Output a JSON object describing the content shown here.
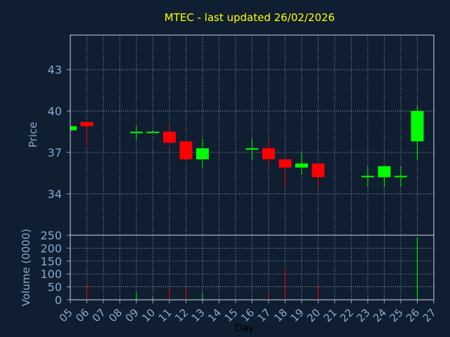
{
  "chart_data": [
    {
      "type": "candlestick",
      "title": "MTEC - last updated 26/02/2026",
      "ylabel": "Price",
      "ylim": [
        31,
        45.5
      ],
      "yticks": [
        34,
        37,
        40,
        43
      ],
      "grid": true,
      "categories": [
        "05",
        "06",
        "07",
        "08",
        "09",
        "10",
        "11",
        "12",
        "13",
        "14",
        "15",
        "16",
        "17",
        "18",
        "19",
        "20",
        "21",
        "22",
        "23",
        "24",
        "25",
        "26",
        "27"
      ],
      "candles": [
        {
          "day": "05",
          "open": 38.6,
          "high": 38.9,
          "low": 38.6,
          "close": 38.9
        },
        {
          "day": "06",
          "open": 39.2,
          "high": 39.2,
          "low": 37.5,
          "close": 38.9
        },
        {
          "day": "09",
          "open": 38.4,
          "high": 38.9,
          "low": 37.9,
          "close": 38.5
        },
        {
          "day": "10",
          "open": 38.4,
          "high": 38.6,
          "low": 38.4,
          "close": 38.5
        },
        {
          "day": "11",
          "open": 38.5,
          "high": 39.0,
          "low": 37.5,
          "close": 37.7
        },
        {
          "day": "12",
          "open": 37.8,
          "high": 37.8,
          "low": 36.5,
          "close": 36.5
        },
        {
          "day": "13",
          "open": 36.5,
          "high": 38.0,
          "low": 35.9,
          "close": 37.3
        },
        {
          "day": "16",
          "open": 37.2,
          "high": 38.0,
          "low": 36.5,
          "close": 37.3
        },
        {
          "day": "17",
          "open": 37.3,
          "high": 38.0,
          "low": 36.0,
          "close": 36.5
        },
        {
          "day": "18",
          "open": 36.5,
          "high": 36.5,
          "low": 34.5,
          "close": 35.9
        },
        {
          "day": "19",
          "open": 35.9,
          "high": 37.0,
          "low": 35.4,
          "close": 36.2
        },
        {
          "day": "20",
          "open": 36.2,
          "high": 36.2,
          "low": 34.5,
          "close": 35.2
        },
        {
          "day": "23",
          "open": 35.2,
          "high": 36.0,
          "low": 34.5,
          "close": 35.3
        },
        {
          "day": "24",
          "open": 35.2,
          "high": 36.0,
          "low": 34.5,
          "close": 36.0
        },
        {
          "day": "25",
          "open": 35.2,
          "high": 36.0,
          "low": 34.5,
          "close": 35.3
        },
        {
          "day": "26",
          "open": 37.8,
          "high": 40.4,
          "low": 36.5,
          "close": 40.0
        }
      ],
      "up_color": "#00ff00",
      "down_color": "#ff0000"
    },
    {
      "type": "bar",
      "ylabel": "Volume (0000)",
      "xlabel": "Day",
      "ylim": [
        0,
        250
      ],
      "yticks": [
        0,
        50,
        100,
        150,
        200,
        250
      ],
      "grid": true,
      "volumes": [
        {
          "day": "06",
          "value": 60,
          "dir": "down"
        },
        {
          "day": "09",
          "value": 30,
          "dir": "up"
        },
        {
          "day": "10",
          "value": 10,
          "dir": "up"
        },
        {
          "day": "11",
          "value": 45,
          "dir": "down"
        },
        {
          "day": "12",
          "value": 45,
          "dir": "down"
        },
        {
          "day": "13",
          "value": 25,
          "dir": "up"
        },
        {
          "day": "17",
          "value": 20,
          "dir": "down"
        },
        {
          "day": "18",
          "value": 120,
          "dir": "down"
        },
        {
          "day": "20",
          "value": 55,
          "dir": "down"
        },
        {
          "day": "26",
          "value": 240,
          "dir": "up"
        }
      ]
    }
  ]
}
